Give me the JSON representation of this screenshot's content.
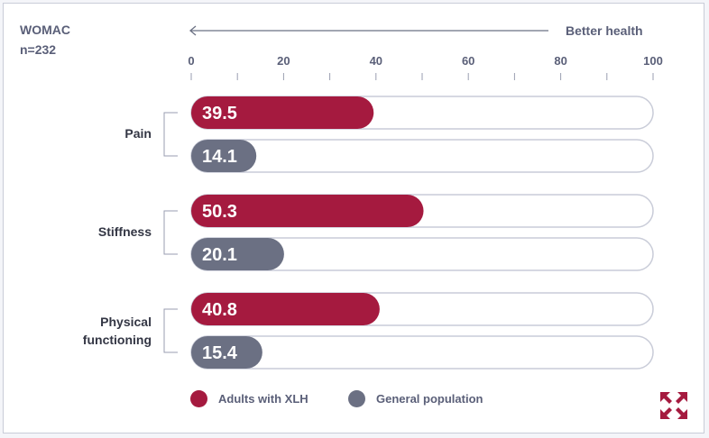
{
  "header": {
    "measure": "WOMAC",
    "n": "n=232",
    "direction_label": "Better health"
  },
  "chart_data": {
    "type": "bar",
    "orientation": "horizontal",
    "categories": [
      "Pain",
      "Stiffness",
      "Physical functioning"
    ],
    "series": [
      {
        "name": "Adults with XLH",
        "color": "#a51a3f",
        "values": [
          39.5,
          50.3,
          40.8
        ]
      },
      {
        "name": "General population",
        "color": "#6b7083",
        "values": [
          14.1,
          20.1,
          15.4
        ]
      }
    ],
    "value_labels": [
      [
        "39.5",
        "50.3",
        "40.8"
      ],
      [
        "14.1",
        "20.1",
        "15.4"
      ]
    ],
    "xlim": [
      0,
      100
    ],
    "ticks": [
      "0",
      "20",
      "40",
      "60",
      "80",
      "100"
    ],
    "legend": "bottom-left"
  },
  "legend": {
    "items": [
      "Adults with XLH",
      "General population"
    ]
  },
  "icons": {
    "expand": "expand-icon"
  }
}
